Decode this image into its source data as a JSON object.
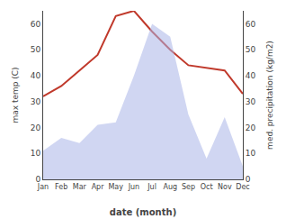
{
  "chart_data": {
    "type": "line",
    "xlabel": "date (month)",
    "ylabel": "max temp (C)",
    "y2label": "med. precipitation (kg/m2)",
    "categories": [
      "Jan",
      "Feb",
      "Mar",
      "Apr",
      "May",
      "Jun",
      "Jul",
      "Aug",
      "Sep",
      "Oct",
      "Nov",
      "Dec"
    ],
    "series": [
      {
        "type": "line",
        "color": "#c0392b",
        "values": [
          32,
          36,
          42,
          48,
          63,
          65,
          57,
          50,
          44,
          43,
          42,
          33
        ]
      },
      {
        "type": "area",
        "axis": "y2",
        "color": "#aab4e8",
        "values": [
          11,
          16,
          14,
          21,
          22,
          40,
          60,
          55,
          25,
          8,
          24,
          5
        ]
      }
    ],
    "ylim": [
      0,
      65
    ],
    "yticks": [
      0,
      10,
      20,
      30,
      40,
      50,
      60
    ],
    "y2lim": [
      0,
      65
    ],
    "y2ticks": [
      0,
      10,
      20,
      30,
      40,
      50,
      60
    ],
    "grid": false
  }
}
